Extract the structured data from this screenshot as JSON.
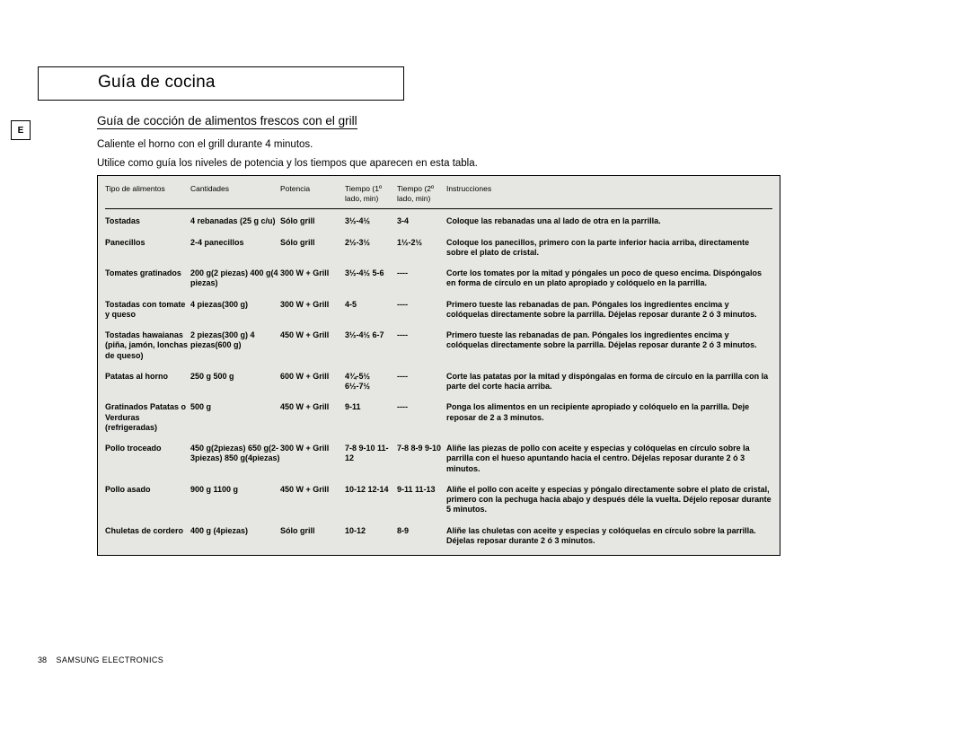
{
  "title": "Guía de cocina",
  "lang_badge": "E",
  "section_heading": "Guía de cocción de alimentos frescos con el grill",
  "intro_line1": "Caliente el horno con el grill durante 4 minutos.",
  "intro_line2": "Utilice como guía los niveles de potencia y los tiempos que aparecen en esta tabla.",
  "footer_page": "38",
  "footer_brand": "SAMSUNG ELECTRONICS",
  "colors": {
    "table_bg": "#e6e6e2",
    "border": "#000000",
    "page_bg": "#ffffff",
    "text": "#000000"
  },
  "table": {
    "columns": [
      "Tipo de alimentos",
      "Cantidades",
      "Potencia",
      "Tiempo (1º lado, min)",
      "Tiempo (2º lado, min)",
      "Instrucciones"
    ],
    "rows": [
      {
        "food": "Tostadas",
        "qty": "4 rebanadas (25 g c/u)",
        "power": "Sólo grill",
        "t1": "3½-4½",
        "t2": "3-4",
        "instr": "Coloque las rebanadas una al lado de otra en la parrilla."
      },
      {
        "food": "Panecillos",
        "qty": "2-4 panecillos",
        "power": "Sólo grill",
        "t1": "2½-3½",
        "t2": "1½-2½",
        "instr": "Coloque los panecillos, primero con la parte inferior hacia arriba, directamente sobre el plato de cristal."
      },
      {
        "food": "Tomates gratinados",
        "qty": "200 g(2 piezas) 400 g(4 piezas)",
        "power": "300 W + Grill",
        "t1": "3½-4½ 5-6",
        "t2": "----",
        "instr": "Corte los tomates por la mitad y póngales un poco de queso encima. Dispóngalos en forma de círculo en un plato apropiado y colóquelo en la parrilla."
      },
      {
        "food": "Tostadas con tomate y queso",
        "qty": "4 piezas(300 g)",
        "power": "300 W + Grill",
        "t1": "4-5",
        "t2": "----",
        "instr": "Primero tueste las rebanadas de pan. Póngales los ingredientes encima y colóquelas directamente sobre la parrilla. Déjelas reposar durante 2 ó 3 minutos."
      },
      {
        "food": "Tostadas hawaianas (piña, jamón, lonchas de queso)",
        "qty": "2 piezas(300 g) 4 piezas(600 g)",
        "power": "450 W + Grill",
        "t1": "3½-4½ 6-7",
        "t2": "----",
        "instr": "Primero tueste las rebanadas de pan. Póngales los ingredientes encima y colóquelas directamente sobre la parrilla. Déjelas reposar durante 2 ó 3 minutos."
      },
      {
        "food": "Patatas al horno",
        "qty": "250 g 500 g",
        "power": "600 W + Grill",
        "t1": "4¾-5½ 6½-7½",
        "t2": "----",
        "instr": "Corte las patatas por la mitad y dispóngalas en forma de círculo en la parrilla con la parte del corte hacia arriba."
      },
      {
        "food": "Gratinados Patatas o Verduras (refrigeradas)",
        "qty": "500 g",
        "power": "450 W + Grill",
        "t1": "9-11",
        "t2": "----",
        "instr": "Ponga los alimentos en un recipiente apropiado y colóquelo en la parrilla. Deje reposar de 2 a 3 minutos."
      },
      {
        "food": "Pollo troceado",
        "qty": "450 g(2piezas) 650 g(2-3piezas) 850 g(4piezas)",
        "power": "300 W + Grill",
        "t1": "7-8 9-10 11-12",
        "t2": "7-8 8-9 9-10",
        "instr": "Aliñe las piezas de pollo con aceite y especias y colóquelas en círculo sobre la parrilla con el hueso apuntando hacia el centro. Déjelas reposar durante 2 ó 3 minutos."
      },
      {
        "food": "Pollo asado",
        "qty": "900 g 1100 g",
        "power": "450 W + Grill",
        "t1": "10-12 12-14",
        "t2": "9-11 11-13",
        "instr": "Aliñe el pollo con aceite y especias y póngalo directamente sobre el plato de cristal, primero con la pechuga hacia abajo y después déle la vuelta. Déjelo reposar durante 5 minutos."
      },
      {
        "food": "Chuletas de cordero",
        "qty": "400 g (4piezas)",
        "power": "Sólo grill",
        "t1": "10-12",
        "t2": "8-9",
        "instr": "Aliñe las chuletas con aceite y especias y colóquelas en círculo sobre la parrilla. Déjelas reposar durante 2 ó 3 minutos."
      }
    ]
  }
}
